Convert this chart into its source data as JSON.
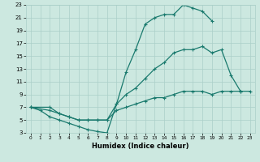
{
  "xlabel": "Humidex (Indice chaleur)",
  "bg_color": "#cce8e0",
  "line_color": "#1a7a6e",
  "grid_color": "#aacfc8",
  "xlim": [
    -0.5,
    23.5
  ],
  "ylim": [
    3,
    23
  ],
  "xticks": [
    0,
    1,
    2,
    3,
    4,
    5,
    6,
    7,
    8,
    9,
    10,
    11,
    12,
    13,
    14,
    15,
    16,
    17,
    18,
    19,
    20,
    21,
    22,
    23
  ],
  "yticks": [
    3,
    5,
    7,
    9,
    11,
    13,
    15,
    17,
    19,
    21,
    23
  ],
  "line1_x": [
    0,
    1,
    2,
    3,
    4,
    5,
    6,
    7,
    8,
    9,
    10,
    11,
    12,
    13,
    14,
    15,
    16,
    17,
    18,
    19
  ],
  "line1_y": [
    7,
    6.5,
    5.5,
    5.0,
    4.5,
    4.0,
    3.5,
    3.2,
    3.0,
    7.5,
    12.5,
    16.0,
    20.0,
    21.0,
    21.5,
    21.5,
    23.0,
    22.5,
    22.0,
    20.5
  ],
  "line2_x": [
    0,
    2,
    3,
    4,
    5,
    6,
    7,
    8,
    9,
    10,
    11,
    12,
    13,
    14,
    15,
    16,
    17,
    18,
    19,
    20,
    21,
    22
  ],
  "line2_y": [
    7,
    6.5,
    6.0,
    5.5,
    5.0,
    5.0,
    5.0,
    5.0,
    7.5,
    9.0,
    10.0,
    11.5,
    13.0,
    14.0,
    15.5,
    16.0,
    16.0,
    16.5,
    15.5,
    16.0,
    12.0,
    9.5
  ],
  "line3_x": [
    0,
    2,
    3,
    4,
    5,
    6,
    7,
    8,
    9,
    10,
    11,
    12,
    13,
    14,
    15,
    16,
    17,
    18,
    19,
    20,
    21,
    22,
    23
  ],
  "line3_y": [
    7,
    7.0,
    6.0,
    5.5,
    5.0,
    5.0,
    5.0,
    5.0,
    6.5,
    7.0,
    7.5,
    8.0,
    8.5,
    8.5,
    9.0,
    9.5,
    9.5,
    9.5,
    9.0,
    9.5,
    9.5,
    9.5,
    9.5
  ]
}
